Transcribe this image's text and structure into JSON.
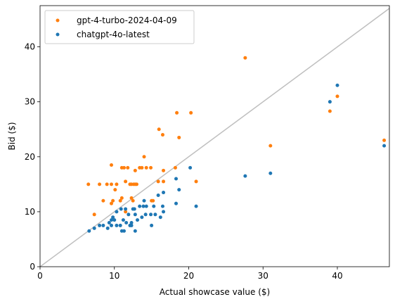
{
  "chart_data": {
    "type": "scatter",
    "xlabel": "Actual showcase value ($)",
    "ylabel": "Bid ($)",
    "xlim": [
      0,
      47
    ],
    "ylim": [
      0,
      47.5
    ],
    "xticks": [
      0,
      10,
      20,
      30,
      40
    ],
    "yticks": [
      0,
      10,
      20,
      30,
      40
    ],
    "grid": false,
    "legend_position": "top-left",
    "reference_line": {
      "from": [
        0,
        0
      ],
      "to": [
        47,
        47
      ],
      "color": "#bfbfbf"
    },
    "series": [
      {
        "name": "gpt-4-turbo-2024-04-09",
        "color": "#ff7f0e",
        "points": [
          [
            6.5,
            15
          ],
          [
            7.3,
            9.5
          ],
          [
            8,
            15
          ],
          [
            8.5,
            12
          ],
          [
            9,
            15
          ],
          [
            9.6,
            18.5
          ],
          [
            9.6,
            15
          ],
          [
            9.6,
            11.5
          ],
          [
            9.8,
            12
          ],
          [
            10.1,
            14
          ],
          [
            10.3,
            15
          ],
          [
            10.8,
            12
          ],
          [
            11,
            12.5
          ],
          [
            11,
            18
          ],
          [
            11.3,
            18
          ],
          [
            11.5,
            15.5
          ],
          [
            11.5,
            10
          ],
          [
            11.8,
            18
          ],
          [
            12.1,
            15
          ],
          [
            12.3,
            15
          ],
          [
            12.3,
            12.5
          ],
          [
            12.5,
            12
          ],
          [
            12.6,
            15
          ],
          [
            12.8,
            17.5
          ],
          [
            12.8,
            15
          ],
          [
            13,
            15
          ],
          [
            13.4,
            18
          ],
          [
            13.7,
            18
          ],
          [
            14,
            20
          ],
          [
            14.3,
            18
          ],
          [
            14.9,
            18
          ],
          [
            15,
            12
          ],
          [
            15.2,
            12
          ],
          [
            15.9,
            15.5
          ],
          [
            16,
            25
          ],
          [
            16.5,
            24
          ],
          [
            16.6,
            15.5
          ],
          [
            16.6,
            17.5
          ],
          [
            18.2,
            18
          ],
          [
            18.4,
            28
          ],
          [
            18.7,
            23.5
          ],
          [
            20.3,
            28
          ],
          [
            21,
            15.5
          ],
          [
            27.6,
            38
          ],
          [
            31,
            22
          ],
          [
            39,
            28.3
          ],
          [
            40,
            31
          ],
          [
            46.3,
            23
          ]
        ]
      },
      {
        "name": "chatgpt-4o-latest",
        "color": "#1f77b4",
        "points": [
          [
            6.6,
            6.5
          ],
          [
            7.3,
            7
          ],
          [
            8,
            7.5
          ],
          [
            8.5,
            7.5
          ],
          [
            9.1,
            7
          ],
          [
            9.3,
            8
          ],
          [
            9.6,
            8.5
          ],
          [
            9.6,
            7.5
          ],
          [
            9.8,
            9
          ],
          [
            10,
            8.5
          ],
          [
            10.3,
            7.5
          ],
          [
            10.3,
            10
          ],
          [
            10.8,
            7.5
          ],
          [
            10.9,
            10.5
          ],
          [
            11,
            6.5
          ],
          [
            11.2,
            8.5
          ],
          [
            11.3,
            6.5
          ],
          [
            11.5,
            10.5
          ],
          [
            11.6,
            8
          ],
          [
            11.9,
            9.5
          ],
          [
            12.1,
            7.5
          ],
          [
            12.3,
            7.5
          ],
          [
            12.3,
            8
          ],
          [
            12.5,
            10.5
          ],
          [
            12.7,
            10.5
          ],
          [
            12.8,
            6.5
          ],
          [
            12.8,
            9.5
          ],
          [
            13.1,
            8.5
          ],
          [
            13.4,
            11
          ],
          [
            13.7,
            9
          ],
          [
            13.9,
            11
          ],
          [
            14,
            12
          ],
          [
            14.2,
            9.5
          ],
          [
            14.3,
            11
          ],
          [
            14.9,
            9.5
          ],
          [
            15,
            7.5
          ],
          [
            15.3,
            11
          ],
          [
            15.5,
            9.5
          ],
          [
            15.9,
            13
          ],
          [
            16.2,
            9
          ],
          [
            16.5,
            11
          ],
          [
            16.6,
            13.5
          ],
          [
            16.6,
            10
          ],
          [
            18.3,
            11.5
          ],
          [
            18.3,
            16
          ],
          [
            18.7,
            14
          ],
          [
            20.2,
            18
          ],
          [
            21,
            11
          ],
          [
            27.6,
            16.5
          ],
          [
            31,
            17
          ],
          [
            39,
            30
          ],
          [
            40,
            33
          ],
          [
            46.3,
            22
          ]
        ]
      }
    ]
  }
}
